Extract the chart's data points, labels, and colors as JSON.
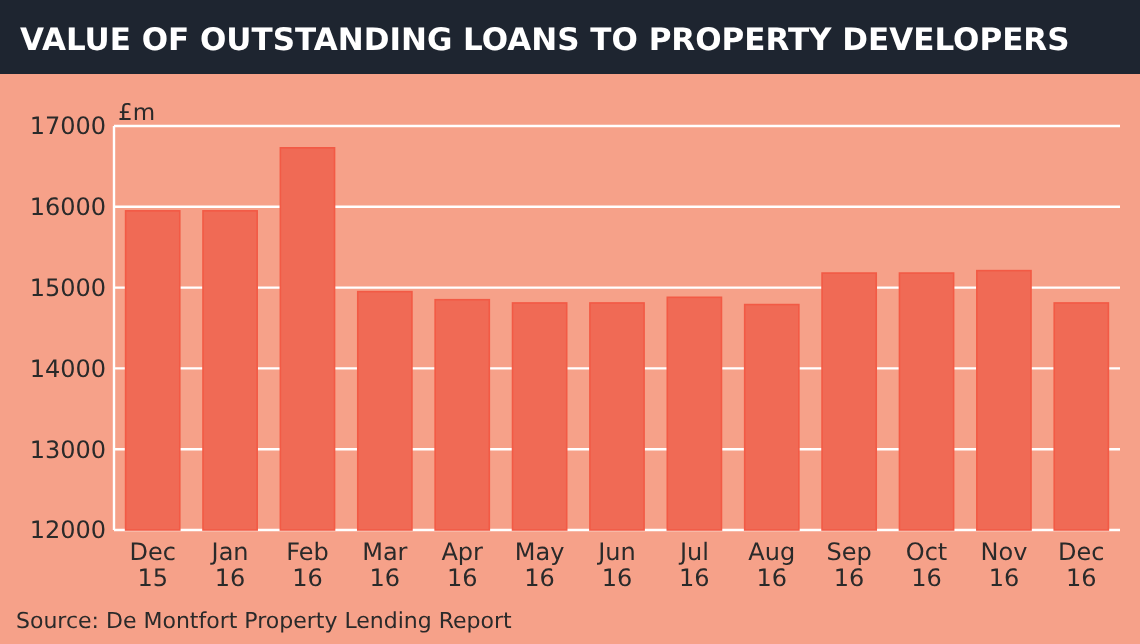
{
  "chart_data": {
    "type": "bar",
    "title": "VALUE OF OUTSTANDING LOANS TO PROPERTY DEVELOPERS",
    "ylabel": "£m",
    "categories": [
      "Dec 15",
      "Jan 16",
      "Feb 16",
      "Mar 16",
      "Apr 16",
      "May 16",
      "Jun 16",
      "Jul 16",
      "Aug 16",
      "Sep 16",
      "Oct 16",
      "Nov 16",
      "Dec 16"
    ],
    "values": [
      15950,
      15950,
      16730,
      14950,
      14850,
      14810,
      14810,
      14880,
      14790,
      15180,
      15180,
      15210,
      14810
    ],
    "color": "#f06a55",
    "ylim": [
      12000,
      17000
    ],
    "yticks": [
      12000,
      13000,
      14000,
      15000,
      16000,
      17000
    ],
    "grid": "y",
    "annotations": [
      "Source: De Montfort Property Lending Report"
    ]
  }
}
